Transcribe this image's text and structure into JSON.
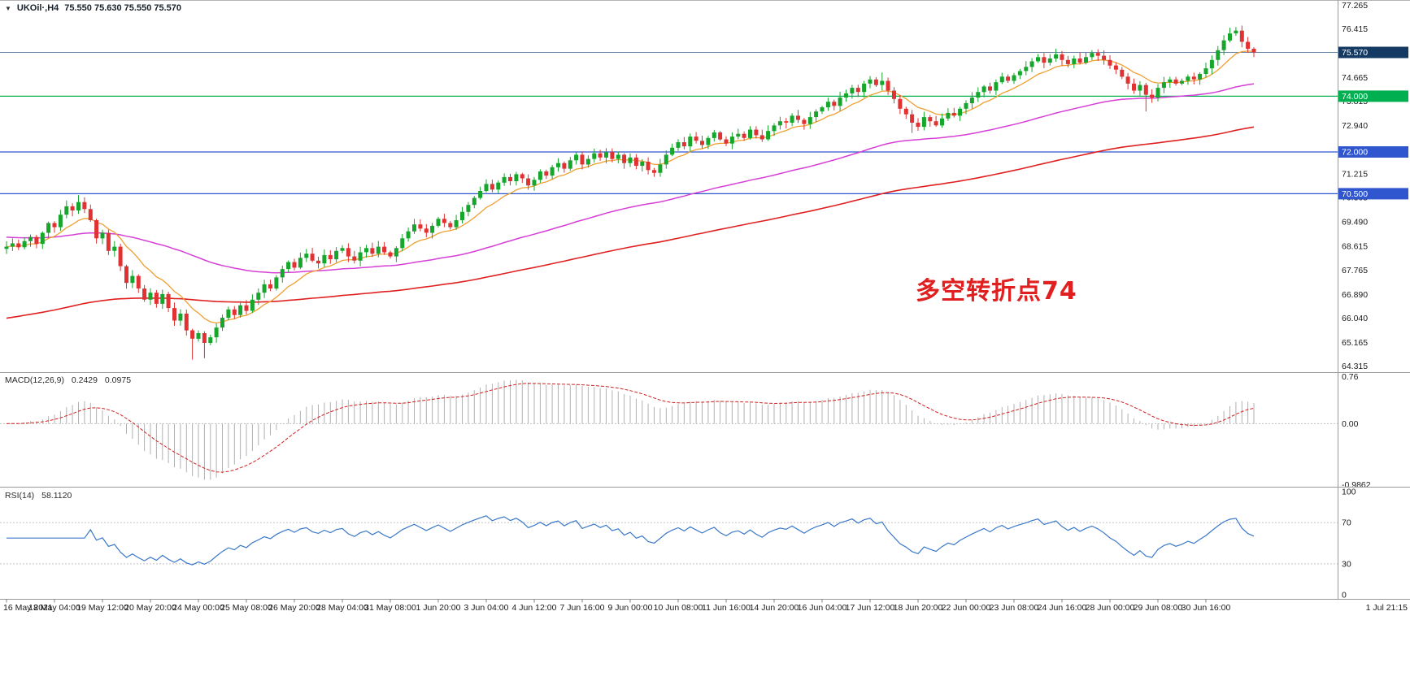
{
  "window": {
    "symbol_tf": "UKOil·,H4",
    "ohlc": "75.550 75.630 75.550 75.570"
  },
  "chart_data": [
    {
      "type": "candlestick",
      "symbol": "UKOil",
      "timeframe": "H4",
      "ylim": [
        64.1,
        77.45
      ],
      "up_color": "#16a62c",
      "down_color": "#e03232",
      "first_open": 68.52,
      "closes": [
        68.6,
        68.72,
        68.58,
        68.8,
        68.95,
        68.7,
        69.1,
        69.45,
        69.3,
        69.75,
        70.05,
        69.9,
        70.2,
        69.95,
        69.55,
        68.9,
        69.1,
        68.45,
        68.6,
        67.9,
        67.3,
        67.55,
        67.1,
        66.7,
        66.95,
        66.55,
        66.9,
        66.4,
        65.95,
        66.2,
        65.6,
        65.3,
        65.5,
        65.15,
        65.35,
        65.7,
        66.05,
        66.35,
        66.15,
        66.5,
        66.3,
        66.7,
        66.95,
        67.25,
        67.1,
        67.5,
        67.8,
        68.05,
        67.85,
        68.2,
        68.35,
        68.1,
        68.0,
        68.3,
        68.15,
        68.45,
        68.55,
        68.25,
        68.1,
        68.4,
        68.55,
        68.35,
        68.6,
        68.4,
        68.25,
        68.55,
        68.9,
        69.15,
        69.4,
        69.25,
        69.1,
        69.35,
        69.6,
        69.45,
        69.3,
        69.55,
        69.85,
        70.1,
        70.35,
        70.6,
        70.85,
        70.65,
        70.9,
        71.1,
        70.95,
        71.2,
        71.05,
        70.8,
        71.0,
        71.3,
        71.15,
        71.45,
        71.6,
        71.4,
        71.7,
        71.9,
        71.55,
        71.75,
        71.95,
        71.8,
        72.0,
        71.75,
        71.9,
        71.6,
        71.8,
        71.5,
        71.65,
        71.35,
        71.25,
        71.55,
        71.9,
        72.15,
        72.35,
        72.2,
        72.55,
        72.4,
        72.25,
        72.5,
        72.7,
        72.45,
        72.3,
        72.55,
        72.65,
        72.5,
        72.8,
        72.6,
        72.45,
        72.75,
        72.95,
        73.1,
        73.05,
        73.3,
        73.15,
        73.0,
        73.25,
        73.45,
        73.6,
        73.8,
        73.65,
        73.95,
        74.1,
        74.3,
        74.15,
        74.45,
        74.6,
        74.4,
        74.55,
        74.2,
        73.9,
        73.55,
        73.35,
        73.05,
        72.9,
        73.25,
        73.1,
        72.95,
        73.2,
        73.4,
        73.3,
        73.55,
        73.75,
        73.95,
        74.15,
        74.35,
        74.2,
        74.5,
        74.7,
        74.55,
        74.75,
        74.9,
        75.05,
        75.25,
        75.4,
        75.2,
        75.35,
        75.5,
        75.3,
        75.15,
        75.35,
        75.2,
        75.4,
        75.55,
        75.45,
        75.3,
        75.1,
        74.95,
        74.7,
        74.45,
        74.2,
        74.4,
        74.05,
        73.95,
        74.3,
        74.5,
        74.6,
        74.45,
        74.55,
        74.7,
        74.6,
        74.8,
        75.0,
        75.3,
        75.65,
        76.0,
        76.25,
        76.35,
        75.95,
        75.7,
        75.57
      ],
      "last_bar_ohlc": {
        "open": "75.550",
        "high": "75.630",
        "low": "75.550",
        "close": "75.570"
      },
      "wick_overrides": {
        "12": {
          "h": 70.45
        },
        "31": {
          "l": 64.55
        },
        "33": {
          "l": 64.6
        },
        "146": {
          "h": 74.85
        },
        "151": {
          "l": 72.68
        },
        "190": {
          "l": 73.45
        },
        "205": {
          "h": 76.48
        }
      },
      "moving_averages": [
        {
          "name": "slow-ma",
          "period": 150,
          "seed": 66.0,
          "color": "#e02020",
          "width": 1.6
        },
        {
          "name": "mid-ma",
          "period": 70,
          "seed": 68.95,
          "color": "#d63fd6",
          "width": 1.5
        },
        {
          "name": "fast-ma",
          "period": 10,
          "seed": 68.6,
          "color": "#efa032",
          "width": 1.3
        }
      ],
      "hlines": [
        {
          "price": 74.0,
          "label": "74.000",
          "color": "#00b050"
        },
        {
          "price": 72.0,
          "label": "72.000",
          "color": "#2f55cf"
        },
        {
          "price": 70.5,
          "label": "70.500",
          "color": "#2f55cf"
        }
      ],
      "price_tag": {
        "price": 75.57,
        "label": "75.570",
        "line_color": "#6a86a8",
        "bg": "#143a63"
      },
      "axis_ticks": [
        "77.265",
        "76.415",
        "74.665",
        "73.815",
        "72.940",
        "71.215",
        "70.365",
        "69.490",
        "68.615",
        "67.765",
        "66.890",
        "66.040",
        "65.165",
        "64.315"
      ],
      "x_labels": [
        "16 May 2021",
        "18 May 04:00",
        "19 May 12:00",
        "20 May 20:00",
        "24 May 00:00",
        "25 May 08:00",
        "26 May 20:00",
        "28 May 04:00",
        "31 May 08:00",
        "1 Jun 20:00",
        "3 Jun 04:00",
        "4 Jun 12:00",
        "7 Jun 16:00",
        "9 Jun 00:00",
        "10 Jun 08:00",
        "11 Jun 16:00",
        "14 Jun 20:00",
        "16 Jun 04:00",
        "17 Jun 12:00",
        "18 Jun 20:00",
        "22 Jun 00:00",
        "23 Jun 08:00",
        "24 Jun 16:00",
        "28 Jun 00:00",
        "29 Jun 08:00",
        "30 Jun 16:00"
      ],
      "x_last_label": "1 Jul 21:15",
      "annotation": {
        "text": "多空转折点74",
        "color": "#e02020"
      }
    },
    {
      "type": "macd",
      "label": "MACD(12,26,9)",
      "value": "0.2429",
      "signal_value": "0.0975",
      "params": [
        12,
        26,
        9
      ],
      "ylim": [
        -1.02,
        0.82
      ],
      "histogram_color": "#b0b0b0",
      "signal_color": "#d02020",
      "axis_ticks": [
        {
          "v": 0.76,
          "t": "0.76"
        },
        {
          "v": 0.0,
          "t": "0.00"
        },
        {
          "v": -0.9862,
          "t": "-0.9862"
        }
      ]
    },
    {
      "type": "rsi",
      "label": "RSI(14)",
      "value": "58.1120",
      "period": 14,
      "ylim": [
        -4,
        104
      ],
      "line_color": "#3a78c8",
      "levels": [
        70,
        30
      ],
      "axis_ticks": [
        {
          "v": 100,
          "t": "100"
        },
        {
          "v": 70,
          "t": "70"
        },
        {
          "v": 30,
          "t": "30"
        },
        {
          "v": 0,
          "t": "0"
        }
      ]
    }
  ]
}
